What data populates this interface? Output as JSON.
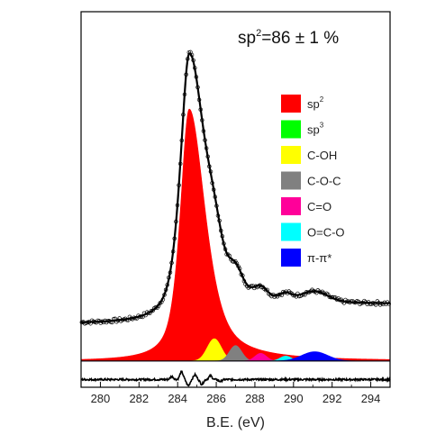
{
  "chart_data": {
    "type": "area",
    "title_base": "sp",
    "title_sup": "2",
    "title_rest": "=86 ± 1 %",
    "xlabel": "B.E. (eV)",
    "xlim": [
      279,
      295
    ],
    "ylim": [
      -0.085,
      1.13
    ],
    "xticks": [
      280,
      282,
      284,
      286,
      288,
      290,
      292,
      294
    ],
    "xtick_labels": [
      "280",
      "282",
      "284",
      "286",
      "288",
      "290",
      "292",
      "294"
    ],
    "grid": false,
    "legend_position": "right",
    "series": [
      {
        "name_base": "sp",
        "name_sup": "2",
        "color": "#ff0000",
        "center": 284.6,
        "amplitude": 0.815,
        "width": 0.55,
        "tail_scale": 1.8
      },
      {
        "name_base": "sp",
        "name_sup": "3",
        "color": "#00ff00",
        "center": 285.6,
        "amplitude": 0.0,
        "width": 0.5
      },
      {
        "name_base": "C-OH",
        "name_sup": "",
        "color": "#ffff00",
        "center": 285.9,
        "amplitude": 0.072,
        "width": 0.52
      },
      {
        "name_base": "C-O-C",
        "name_sup": "",
        "color": "#808080",
        "center": 287.0,
        "amplitude": 0.05,
        "width": 0.45
      },
      {
        "name_base": "C=O",
        "name_sup": "",
        "color": "#ff0099",
        "center": 288.3,
        "amplitude": 0.025,
        "width": 0.42
      },
      {
        "name_base": "O=C-O",
        "name_sup": "",
        "color": "#00ffff",
        "center": 289.6,
        "amplitude": 0.016,
        "width": 0.42
      },
      {
        "name_base": "π-π*",
        "name_sup": "",
        "color": "#0000ff",
        "center": 291.1,
        "amplitude": 0.03,
        "width": 0.95
      }
    ],
    "measured_offset": 0.12,
    "measured_peak": 0.995,
    "baseline_level": 0.0,
    "residual_level": -0.06,
    "residual_features": [
      {
        "x": 283.7,
        "dy": 0.01
      },
      {
        "x": 284.2,
        "dy": 0.025
      },
      {
        "x": 284.55,
        "dy": -0.02
      },
      {
        "x": 284.9,
        "dy": 0.015
      },
      {
        "x": 285.25,
        "dy": -0.015
      },
      {
        "x": 285.7,
        "dy": 0.012
      },
      {
        "x": 286.2,
        "dy": -0.006
      }
    ]
  }
}
